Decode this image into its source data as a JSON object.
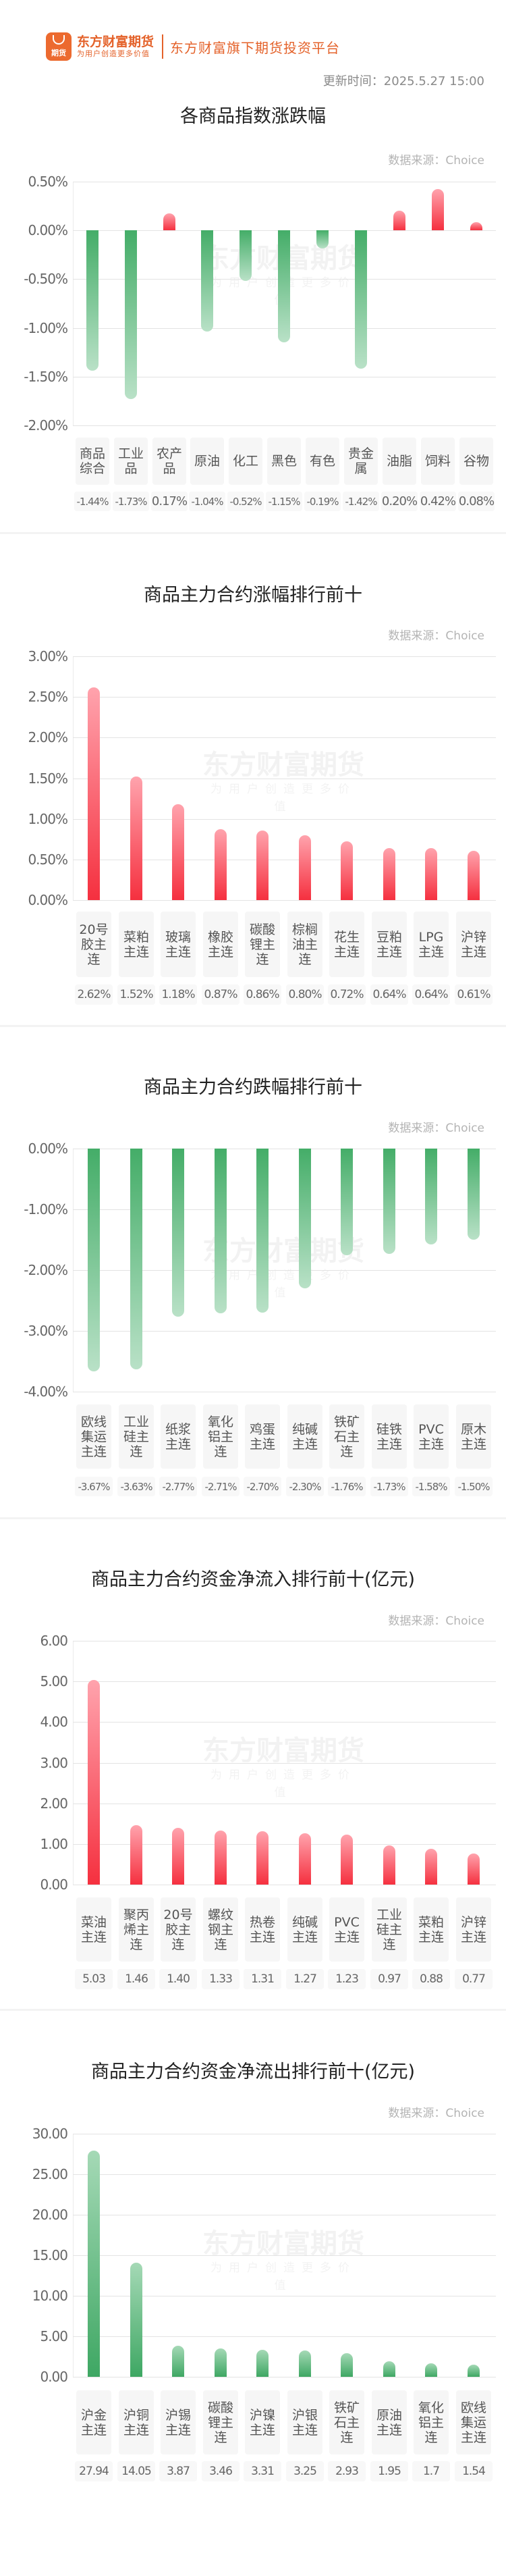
{
  "header": {
    "logo_badge": "期货",
    "brand_name": "东方财富期货",
    "brand_slogan": "为用户创造更多价值",
    "platform_tagline": "东方财富旗下期货投资平台",
    "update_time": "更新时间：2025.5.27 15:00"
  },
  "watermark": {
    "main": "东方财富期货",
    "sub": "为用户创造更多价值"
  },
  "colors": {
    "brand": "#e4622a",
    "up": "#f5303f",
    "down": "#44ad68"
  },
  "chart_data": [
    {
      "id": "index_change",
      "type": "bar",
      "title": "各商品指数涨跌幅",
      "source": "数据来源：Choice",
      "ylim": [
        -2.0,
        0.5
      ],
      "yticks": [
        "0.50%",
        "0.00%",
        "-0.50%",
        "-1.00%",
        "-1.50%",
        "-2.00%"
      ],
      "categories": [
        "商品综合",
        "工业品",
        "农产品",
        "原油",
        "化工",
        "黑色",
        "有色",
        "贵金属",
        "油脂",
        "饲料",
        "谷物"
      ],
      "values": [
        -1.44,
        -1.73,
        0.17,
        -1.04,
        -0.52,
        -1.15,
        -0.19,
        -1.42,
        0.2,
        0.42,
        0.08
      ],
      "value_labels": [
        "-1.44%",
        "-1.73%",
        "0.17%",
        "-1.04%",
        "-0.52%",
        "-1.15%",
        "-0.19%",
        "-1.42%",
        "0.20%",
        "0.42%",
        "0.08%"
      ],
      "unit": "%"
    },
    {
      "id": "top_gainers",
      "type": "bar",
      "title": "商品主力合约涨幅排行前十",
      "source": "数据来源：Choice",
      "ylim": [
        0,
        3.0
      ],
      "yticks": [
        "3.00%",
        "2.50%",
        "2.00%",
        "1.50%",
        "1.00%",
        "0.50%",
        "0.00%"
      ],
      "categories": [
        "20号胶主连",
        "菜粕主连",
        "玻璃主连",
        "橡胶主连",
        "碳酸锂主连",
        "棕榈油主连",
        "花生主连",
        "豆粕主连",
        "LPG主连",
        "沪锌主连"
      ],
      "values": [
        2.62,
        1.52,
        1.18,
        0.87,
        0.86,
        0.8,
        0.72,
        0.64,
        0.64,
        0.61
      ],
      "value_labels": [
        "2.62%",
        "1.52%",
        "1.18%",
        "0.87%",
        "0.86%",
        "0.80%",
        "0.72%",
        "0.64%",
        "0.64%",
        "0.61%"
      ],
      "unit": "%"
    },
    {
      "id": "top_losers",
      "type": "bar",
      "title": "商品主力合约跌幅排行前十",
      "source": "数据来源：Choice",
      "ylim": [
        -4.0,
        0
      ],
      "yticks": [
        "0.00%",
        "-1.00%",
        "-2.00%",
        "-3.00%",
        "-4.00%"
      ],
      "categories": [
        "欧线集运主连",
        "工业硅主连",
        "纸浆主连",
        "氧化铝主连",
        "鸡蛋主连",
        "纯碱主连",
        "铁矿石主连",
        "硅铁主连",
        "PVC主连",
        "原木主连"
      ],
      "values": [
        -3.67,
        -3.63,
        -2.77,
        -2.71,
        -2.7,
        -2.3,
        -1.76,
        -1.73,
        -1.58,
        -1.5
      ],
      "value_labels": [
        "-3.67%",
        "-3.63%",
        "-2.77%",
        "-2.71%",
        "-2.70%",
        "-2.30%",
        "-1.76%",
        "-1.73%",
        "-1.58%",
        "-1.50%"
      ],
      "unit": "%"
    },
    {
      "id": "net_inflow",
      "type": "bar",
      "title": "商品主力合约资金净流入排行前十(亿元)",
      "source": "数据来源：Choice",
      "ylim": [
        0,
        6.0
      ],
      "yticks": [
        "6.00",
        "5.00",
        "4.00",
        "3.00",
        "2.00",
        "1.00",
        "0.00"
      ],
      "categories": [
        "菜油主连",
        "聚丙烯主连",
        "20号胶主连",
        "螺纹钢主连",
        "热卷主连",
        "纯碱主连",
        "PVC主连",
        "工业硅主连",
        "菜粕主连",
        "沪锌主连"
      ],
      "values": [
        5.03,
        1.46,
        1.4,
        1.33,
        1.31,
        1.27,
        1.23,
        0.97,
        0.88,
        0.77
      ],
      "value_labels": [
        "5.03",
        "1.46",
        "1.40",
        "1.33",
        "1.31",
        "1.27",
        "1.23",
        "0.97",
        "0.88",
        "0.77"
      ],
      "unit": "亿元"
    },
    {
      "id": "net_outflow",
      "type": "bar",
      "title": "商品主力合约资金净流出排行前十(亿元)",
      "source": "数据来源：Choice",
      "ylim": [
        0,
        30.0
      ],
      "yticks": [
        "30.00",
        "25.00",
        "20.00",
        "15.00",
        "10.00",
        "5.00",
        "0.00"
      ],
      "categories": [
        "沪金主连",
        "沪铜主连",
        "沪锡主连",
        "碳酸锂主连",
        "沪镍主连",
        "沪银主连",
        "铁矿石主连",
        "原油主连",
        "氧化铝主连",
        "欧线集运主连"
      ],
      "values": [
        27.94,
        14.05,
        3.87,
        3.46,
        3.31,
        3.25,
        2.93,
        1.95,
        1.7,
        1.54
      ],
      "value_labels": [
        "27.94",
        "14.05",
        "3.87",
        "3.46",
        "3.31",
        "3.25",
        "2.93",
        "1.95",
        "1.7",
        "1.54"
      ],
      "unit": "亿元"
    }
  ]
}
